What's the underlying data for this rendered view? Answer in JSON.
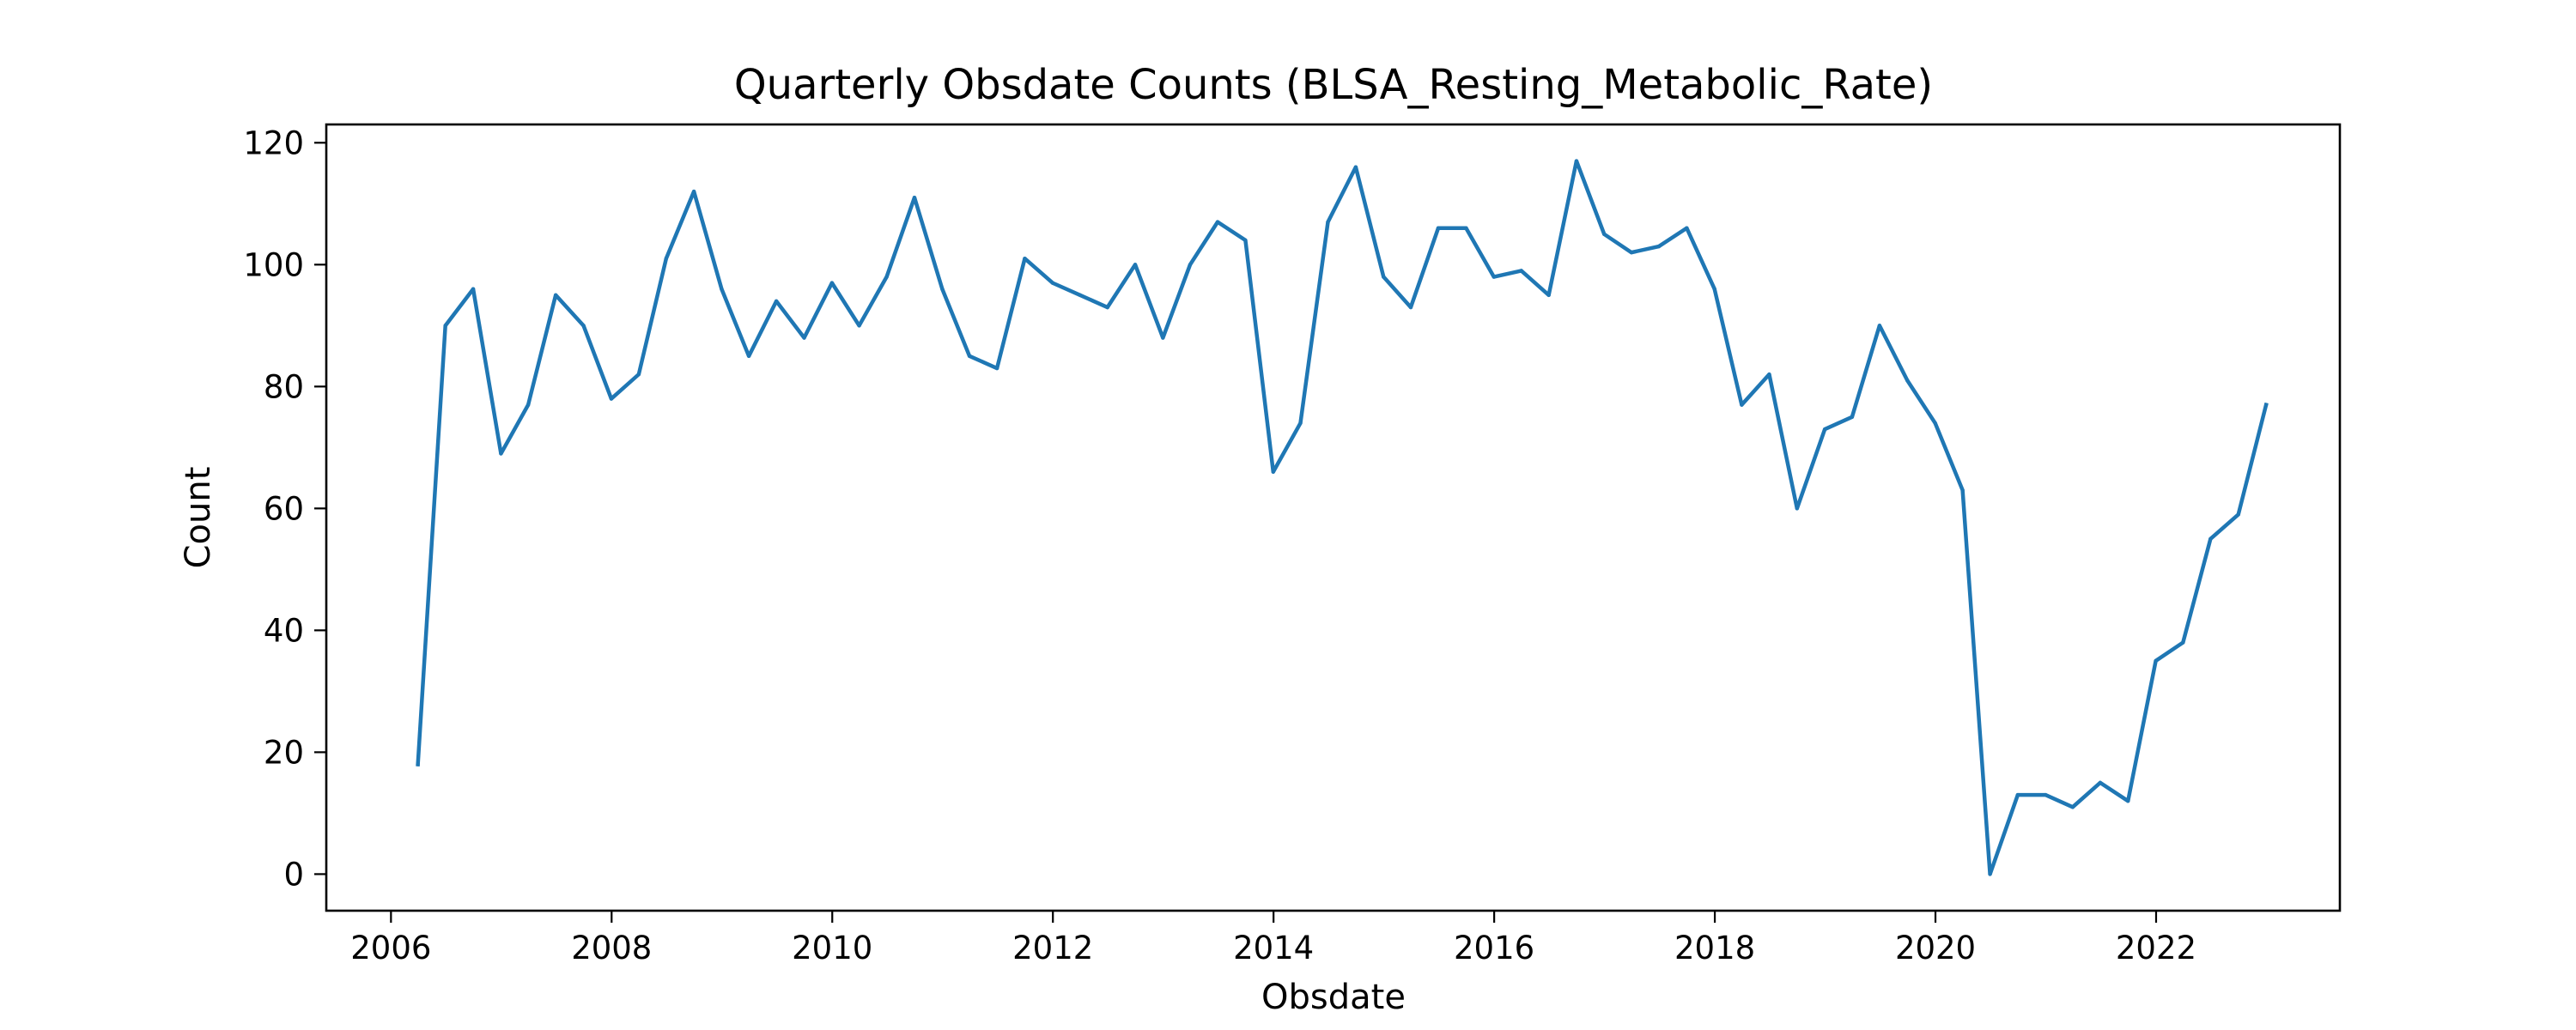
{
  "chart_data": {
    "type": "line",
    "title": "Quarterly Obsdate Counts (BLSA_Resting_Metabolic_Rate)",
    "xlabel": "Obsdate",
    "ylabel": "Count",
    "xlim": [
      "2005-06-01",
      "2023-09-01"
    ],
    "ylim": [
      -6,
      123
    ],
    "x_ticks": [
      "2006",
      "2008",
      "2010",
      "2012",
      "2014",
      "2016",
      "2018",
      "2020",
      "2022"
    ],
    "y_ticks": [
      "0",
      "20",
      "40",
      "60",
      "80",
      "100",
      "120"
    ],
    "grid": false,
    "legend": "none",
    "series": [
      {
        "color": "#1f77b4",
        "x": [
          "2006-03-31",
          "2006-06-30",
          "2006-09-30",
          "2006-12-31",
          "2007-03-31",
          "2007-06-30",
          "2007-09-30",
          "2007-12-31",
          "2008-03-31",
          "2008-06-30",
          "2008-09-30",
          "2008-12-31",
          "2009-03-31",
          "2009-06-30",
          "2009-09-30",
          "2009-12-31",
          "2010-03-31",
          "2010-06-30",
          "2010-09-30",
          "2010-12-31",
          "2011-03-31",
          "2011-06-30",
          "2011-09-30",
          "2011-12-31",
          "2012-03-31",
          "2012-06-30",
          "2012-09-30",
          "2012-12-31",
          "2013-03-31",
          "2013-06-30",
          "2013-09-30",
          "2013-12-31",
          "2014-03-31",
          "2014-06-30",
          "2014-09-30",
          "2014-12-31",
          "2015-03-31",
          "2015-06-30",
          "2015-09-30",
          "2015-12-31",
          "2016-03-31",
          "2016-06-30",
          "2016-09-30",
          "2016-12-31",
          "2017-03-31",
          "2017-06-30",
          "2017-09-30",
          "2017-12-31",
          "2018-03-31",
          "2018-06-30",
          "2018-09-30",
          "2018-12-31",
          "2019-03-31",
          "2019-06-30",
          "2019-09-30",
          "2019-12-31",
          "2020-03-31",
          "2020-06-30",
          "2020-09-30",
          "2020-12-31",
          "2021-03-31",
          "2021-06-30",
          "2021-09-30",
          "2021-12-31",
          "2022-03-31",
          "2022-06-30",
          "2022-09-30",
          "2022-12-31"
        ],
        "values": [
          18,
          90,
          96,
          69,
          77,
          95,
          90,
          78,
          82,
          101,
          112,
          96,
          85,
          94,
          88,
          97,
          90,
          98,
          111,
          96,
          85,
          83,
          101,
          97,
          95,
          93,
          100,
          88,
          100,
          107,
          104,
          66,
          74,
          107,
          116,
          98,
          93,
          106,
          106,
          98,
          99,
          95,
          117,
          105,
          102,
          103,
          106,
          96,
          77,
          82,
          60,
          73,
          75,
          90,
          81,
          74,
          63,
          0,
          13,
          13,
          11,
          15,
          12,
          35,
          38,
          55,
          59,
          77
        ]
      }
    ]
  }
}
